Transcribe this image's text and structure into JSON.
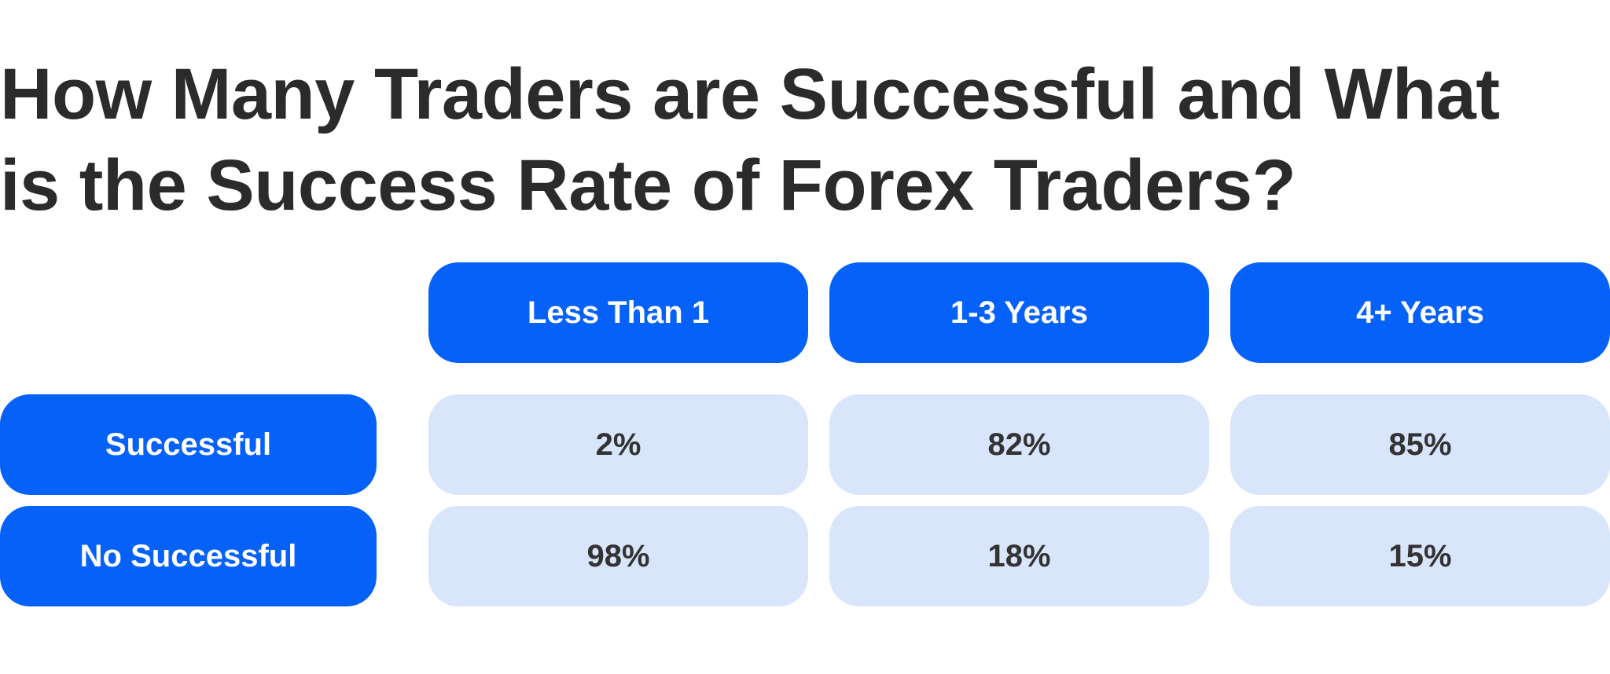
{
  "title": {
    "line1": "How Many Traders are Successful and What",
    "line2": "is the Success Rate of Forex Traders?"
  },
  "chart_data": {
    "type": "table",
    "title": "How Many Traders are Successful and What is the Success Rate of Forex Traders?",
    "columns": [
      "Less Than 1",
      "1-3 Years",
      "4+ Years"
    ],
    "rows": [
      {
        "label": "Successful",
        "values": [
          "2%",
          "82%",
          "85%"
        ]
      },
      {
        "label": "No Successful",
        "values": [
          "98%",
          "18%",
          "15%"
        ]
      }
    ]
  },
  "colors": {
    "header_bg": "#0561f8",
    "header_text": "#ffffff",
    "cell_bg": "#d8e5fb",
    "cell_text": "#333333",
    "title_text": "#2b2b2b"
  }
}
